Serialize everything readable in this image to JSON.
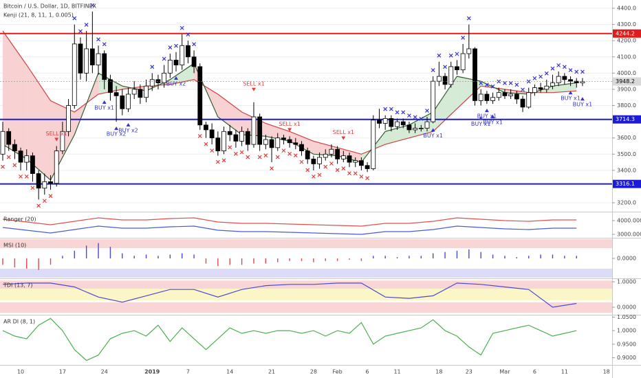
{
  "chart_data": [
    {
      "type": "candlestick",
      "title": "Bitcoin / U.S. Dollar, 1D, BITFINEX",
      "subtitle": "Kenji (21, 8, 11, 1, 0.005)",
      "categories": [
        null,
        null,
        null,
        "10",
        null,
        null,
        null,
        null,
        null,
        null,
        "17",
        null,
        null,
        null,
        null,
        null,
        null,
        "24",
        null,
        null,
        null,
        null,
        null,
        null,
        null,
        "2019",
        null,
        null,
        null,
        null,
        null,
        "7",
        null,
        null,
        null,
        null,
        null,
        null,
        "14",
        null,
        null,
        null,
        null,
        null,
        null,
        "21",
        null,
        null,
        null,
        null,
        null,
        null,
        "28",
        null,
        null,
        null,
        "Feb",
        null,
        null,
        null,
        null,
        "6",
        null,
        null,
        null,
        null,
        "11",
        null,
        null,
        null,
        null,
        null,
        null,
        "18",
        null,
        null,
        null,
        null,
        "23",
        null,
        null,
        null,
        null,
        null,
        "Mar",
        null,
        null,
        null,
        null,
        "6",
        null,
        null,
        null,
        null,
        "11",
        null,
        null,
        null,
        null,
        null,
        null,
        "18"
      ],
      "open": [
        3500,
        3640,
        3560,
        3520,
        3450,
        3490,
        3380,
        3290,
        3330,
        3320,
        3520,
        3640,
        3800,
        4180,
        4000,
        4150,
        4050,
        4120,
        3960,
        3880,
        3860,
        3780,
        3870,
        3900,
        3850,
        3920,
        3960,
        3940,
        4000,
        4080,
        4050,
        4170,
        4100,
        4040,
        3680,
        3650,
        3600,
        3520,
        3640,
        3620,
        3580,
        3640,
        3560,
        3730,
        3560,
        3590,
        3540,
        3600,
        3590,
        3570,
        3560,
        3520,
        3470,
        3440,
        3480,
        3500,
        3530,
        3470,
        3490,
        3450,
        3460,
        3430,
        3410,
        3710,
        3690,
        3720,
        3670,
        3700,
        3680,
        3650,
        3660,
        3660,
        3700,
        3950,
        3980,
        3930,
        4040,
        4020,
        4120,
        4150,
        3830,
        3870,
        3830,
        3850,
        3880,
        3860,
        3870,
        3840,
        3790,
        3880,
        3910,
        3900,
        3920,
        3940,
        3980,
        3960,
        3950,
        3940,
        null,
        null,
        null,
        null
      ],
      "high": [
        3700,
        3660,
        3590,
        3540,
        3530,
        3510,
        3400,
        3380,
        3370,
        3550,
        3700,
        3840,
        4300,
        4220,
        4260,
        4380,
        4170,
        4140,
        3990,
        3920,
        3900,
        3910,
        3950,
        3930,
        3960,
        4000,
        3990,
        4050,
        4120,
        4130,
        4240,
        4200,
        4140,
        4060,
        3700,
        3690,
        3640,
        3670,
        3680,
        3650,
        3670,
        3660,
        3820,
        3750,
        3620,
        3610,
        3630,
        3620,
        3610,
        3600,
        3580,
        3540,
        3490,
        3510,
        3530,
        3560,
        3550,
        3520,
        3510,
        3480,
        3480,
        3450,
        3740,
        3780,
        3740,
        3740,
        3720,
        3720,
        3700,
        3690,
        3680,
        3730,
        3980,
        4070,
        4000,
        4070,
        4080,
        4180,
        4300,
        4160,
        3900,
        3890,
        3880,
        3910,
        3900,
        3900,
        3890,
        3860,
        3910,
        3930,
        3940,
        3960,
        3990,
        4010,
        4000,
        3980,
        3970,
        3970,
        null,
        null,
        null,
        null
      ],
      "low": [
        3460,
        3520,
        3470,
        3400,
        3400,
        3330,
        3220,
        3250,
        3280,
        3300,
        3500,
        3610,
        3780,
        3960,
        3950,
        4000,
        3990,
        3900,
        3830,
        3700,
        3740,
        3760,
        3840,
        3810,
        3820,
        3890,
        3900,
        3910,
        3970,
        4010,
        4020,
        4060,
        4000,
        3650,
        3600,
        3560,
        3490,
        3500,
        3580,
        3540,
        3550,
        3520,
        3540,
        3520,
        3530,
        3450,
        3520,
        3560,
        3540,
        3530,
        3490,
        3440,
        3400,
        3410,
        3460,
        3480,
        3440,
        3450,
        3420,
        3420,
        3400,
        3390,
        3400,
        3660,
        3650,
        3640,
        3650,
        3660,
        3630,
        3630,
        3640,
        3640,
        3690,
        3920,
        3900,
        3910,
        3990,
        4000,
        4090,
        3800,
        3800,
        3810,
        3810,
        3830,
        3840,
        3840,
        3810,
        3760,
        3780,
        3860,
        3880,
        3880,
        3900,
        3920,
        3930,
        3920,
        3910,
        3920,
        null,
        null,
        null,
        null
      ],
      "close": [
        3640,
        3560,
        3520,
        3450,
        3490,
        3380,
        3290,
        3330,
        3320,
        3520,
        3640,
        3800,
        4180,
        4000,
        4150,
        4050,
        4120,
        3960,
        3880,
        3860,
        3780,
        3870,
        3900,
        3850,
        3920,
        3960,
        3940,
        4000,
        4080,
        4050,
        4170,
        4100,
        4040,
        3680,
        3650,
        3600,
        3520,
        3640,
        3620,
        3580,
        3640,
        3560,
        3730,
        3560,
        3590,
        3540,
        3600,
        3590,
        3570,
        3560,
        3520,
        3470,
        3440,
        3480,
        3500,
        3530,
        3470,
        3490,
        3450,
        3460,
        3430,
        3410,
        3710,
        3690,
        3720,
        3670,
        3700,
        3680,
        3650,
        3660,
        3660,
        3700,
        3950,
        3980,
        3930,
        4040,
        4020,
        4120,
        4150,
        3830,
        3870,
        3830,
        3850,
        3880,
        3860,
        3870,
        3840,
        3790,
        3880,
        3910,
        3900,
        3920,
        3940,
        3980,
        3960,
        3950,
        3940,
        3948.2,
        null,
        null,
        null,
        null
      ],
      "up_color": "#ffffff",
      "down_color": "#000000",
      "ylim": [
        3145,
        4451
      ],
      "yticks": [
        {
          "value": 3200,
          "label": "3200.0"
        },
        {
          "value": 3400,
          "label": "3400.0"
        },
        {
          "value": 3500,
          "label": "3500.0"
        },
        {
          "value": 3600,
          "label": "3600.0"
        },
        {
          "value": 3800,
          "label": "3800.0"
        },
        {
          "value": 3900,
          "label": "3900.0"
        },
        {
          "value": 4000,
          "label": "4000.0"
        },
        {
          "value": 4100,
          "label": "4100.0"
        },
        {
          "value": 4200,
          "label": "4200.0"
        },
        {
          "value": 4300,
          "label": "4300.0"
        },
        {
          "value": 4400,
          "label": "4400.0"
        }
      ],
      "grid": true,
      "levels": [
        {
          "value": 4244.2,
          "color": "#e01b1b"
        },
        {
          "value": 3714.3,
          "color": "#1c1cd6"
        },
        {
          "value": 3316.1,
          "color": "#1c1cd6"
        }
      ],
      "last_price": 3948.2,
      "last_price_color": "#d9d9d9",
      "ma": {
        "x": [
          0,
          4,
          8,
          12,
          16,
          20,
          24,
          28,
          32,
          36,
          40,
          44,
          48,
          52,
          56,
          60,
          64,
          68,
          72,
          76,
          80,
          84,
          88,
          92,
          96
        ],
        "slow": [
          4260,
          4050,
          3830,
          3760,
          3870,
          3900,
          3920,
          3930,
          3960,
          3870,
          3760,
          3690,
          3640,
          3580,
          3540,
          3500,
          3560,
          3600,
          3640,
          3780,
          3920,
          3900,
          3880,
          3880,
          3890
        ],
        "fast": [
          3560,
          3470,
          3340,
          3620,
          4000,
          3920,
          3890,
          3960,
          4060,
          3730,
          3620,
          3610,
          3580,
          3500,
          3490,
          3450,
          3640,
          3680,
          3760,
          3980,
          3950,
          3880,
          3870,
          3920,
          3940
        ],
        "slow_color": "#d04040",
        "fast_color": "#2e5e2e",
        "down_fill": "#f7caca",
        "up_fill": "#cfe8cf"
      },
      "x_above": [
        12,
        13,
        14,
        15,
        16,
        17,
        25,
        27,
        28,
        29,
        30,
        31,
        32,
        64,
        65,
        66,
        67,
        68,
        69,
        70,
        71,
        72,
        73,
        74,
        75,
        76,
        77,
        78,
        80,
        81,
        82,
        83,
        84,
        85,
        86,
        87,
        88,
        89,
        90,
        91,
        92,
        93,
        94,
        95,
        96,
        97
      ],
      "x_below": [
        0,
        1,
        2,
        3,
        4,
        5,
        6,
        7,
        8,
        33,
        34,
        35,
        36,
        37,
        38,
        39,
        40,
        41,
        43,
        44,
        45,
        46,
        47,
        48,
        49,
        50,
        51,
        52,
        53,
        54,
        55,
        56,
        57,
        58,
        59,
        60,
        61
      ],
      "x_above_color": "#3434d0",
      "x_below_color": "#e03c3c",
      "signals": [
        {
          "index": 9,
          "label": "SELL x1"
        },
        {
          "index": 17,
          "label": "BUY x1"
        },
        {
          "index": 19,
          "label": "BUY x2"
        },
        {
          "index": 21,
          "label": "BUY x2"
        },
        {
          "index": 29,
          "label": "BUY x2"
        },
        {
          "index": 42,
          "label": "SELL x1"
        },
        {
          "index": 48,
          "label": "SELL x1"
        },
        {
          "index": 57,
          "label": "SELL x1"
        },
        {
          "index": 72,
          "label": "BUY x1"
        },
        {
          "index": 80,
          "label": "BUY x1"
        },
        {
          "index": 81,
          "label": "BUY x1"
        },
        {
          "index": 82,
          "label": "BUY x1"
        },
        {
          "index": 95,
          "label": "BUY x1"
        },
        {
          "index": 97,
          "label": "BUY x1"
        }
      ],
      "sell_color": "#e03c3c",
      "buy_color": "#3434d0"
    },
    {
      "type": "line",
      "title": "Ranger (20)",
      "ylim": [
        2800,
        4550
      ],
      "yticks": [
        {
          "value": 3000,
          "label": "3000.0000"
        },
        {
          "value": 4000,
          "label": "4000.0000"
        }
      ],
      "x": [
        0,
        4,
        8,
        12,
        16,
        20,
        24,
        28,
        32,
        36,
        40,
        44,
        48,
        52,
        56,
        60,
        64,
        68,
        72,
        76,
        80,
        84,
        88,
        92,
        96
      ],
      "series": [
        {
          "color": "#e05050",
          "values": [
            4100,
            3900,
            3700,
            3950,
            4200,
            4050,
            4050,
            4150,
            4200,
            3900,
            3800,
            3800,
            3750,
            3700,
            3650,
            3600,
            3800,
            3800,
            3950,
            4200,
            4100,
            4000,
            3950,
            4050,
            4050
          ]
        },
        {
          "color": "#4a5ad8",
          "values": [
            3500,
            3300,
            3100,
            3350,
            3600,
            3450,
            3450,
            3550,
            3600,
            3300,
            3200,
            3200,
            3150,
            3100,
            3050,
            3000,
            3200,
            3200,
            3350,
            3600,
            3500,
            3400,
            3350,
            3450,
            3450
          ]
        }
      ]
    },
    {
      "type": "bar",
      "title": "MSI (10)",
      "ylim": [
        -1.5,
        1.5
      ],
      "yticks": [
        {
          "value": 0,
          "label": "0.0000"
        }
      ],
      "bands": [
        {
          "from": 0.8,
          "to": 1.5,
          "color": "#f8d6d6"
        },
        {
          "from": -1.5,
          "to": -0.8,
          "color": "#dcdcf8"
        }
      ],
      "x": [
        0,
        2,
        4,
        6,
        8,
        10,
        12,
        14,
        16,
        18,
        20,
        22,
        24,
        26,
        28,
        30,
        32,
        34,
        36,
        38,
        40,
        42,
        44,
        46,
        48,
        50,
        52,
        54,
        56,
        58,
        60,
        62,
        64,
        66,
        68,
        70,
        72,
        74,
        76,
        78,
        80,
        82,
        84,
        86,
        88,
        90,
        92,
        94,
        96
      ],
      "values": [
        -0.5,
        -0.7,
        -0.8,
        -0.9,
        -0.5,
        0.2,
        0.6,
        1.0,
        1.2,
        0.9,
        0.4,
        0.2,
        0.3,
        0.2,
        0.3,
        0.4,
        0.3,
        -0.4,
        -0.6,
        -0.5,
        -0.5,
        -0.4,
        -0.4,
        -0.3,
        -0.2,
        -0.2,
        -0.3,
        -0.2,
        -0.2,
        -0.1,
        -0.2,
        0.2,
        0.2,
        0.1,
        0.2,
        0.2,
        0.4,
        0.5,
        0.6,
        0.7,
        0.5,
        0.3,
        0.2,
        0.1,
        0.2,
        0.3,
        0.3,
        0.2,
        0.2
      ],
      "positive_color": "#4848e0",
      "negative_color": "#e04848"
    },
    {
      "type": "line",
      "title": "TDI (13, 7)",
      "ylim": [
        -0.27,
        1.11
      ],
      "yticks": [
        {
          "value": 0,
          "label": "0.0000"
        },
        {
          "value": 1,
          "label": "1.0000"
        }
      ],
      "bands": [
        {
          "from": 0.73,
          "to": 1.05,
          "color": "#f8d6d6"
        },
        {
          "from": 0.27,
          "to": 0.73,
          "color": "#fbf6c8"
        },
        {
          "from": -0.22,
          "to": 0.19,
          "color": "#f8d6d6"
        }
      ],
      "x": [
        0,
        4,
        8,
        12,
        16,
        20,
        24,
        28,
        32,
        36,
        40,
        44,
        48,
        52,
        56,
        60,
        64,
        68,
        72,
        76,
        80,
        84,
        88,
        92,
        96
      ],
      "series": [
        {
          "color": "#4a4ad0",
          "values": [
            0.9,
            0.95,
            0.95,
            0.8,
            0.4,
            0.2,
            0.45,
            0.7,
            0.7,
            0.4,
            0.7,
            0.85,
            0.9,
            0.9,
            0.95,
            0.95,
            0.4,
            0.35,
            0.45,
            0.95,
            0.9,
            0.8,
            0.7,
            0.0,
            0.15
          ]
        }
      ]
    },
    {
      "type": "line",
      "title": "AR DI (8, 1)",
      "ylim": [
        0.876,
        1.056
      ],
      "yticks": [
        {
          "value": 0.9,
          "label": "0.9000"
        },
        {
          "value": 0.95,
          "label": "0.9500"
        },
        {
          "value": 1,
          "label": "1.0000"
        },
        {
          "value": 1.05,
          "label": "1.0500"
        }
      ],
      "x": [
        0,
        2,
        4,
        6,
        8,
        10,
        12,
        14,
        16,
        18,
        20,
        22,
        24,
        26,
        28,
        30,
        32,
        34,
        36,
        38,
        40,
        42,
        44,
        46,
        48,
        50,
        52,
        54,
        56,
        58,
        60,
        62,
        64,
        66,
        68,
        70,
        72,
        74,
        76,
        78,
        80,
        82,
        84,
        86,
        88,
        90,
        92,
        94,
        96
      ],
      "series": [
        {
          "color": "#4caf50",
          "values": [
            1.0,
            0.98,
            0.97,
            1.02,
            1.045,
            1.0,
            0.93,
            0.89,
            0.91,
            0.97,
            0.99,
            1.0,
            0.98,
            1.02,
            0.96,
            1.01,
            0.97,
            0.93,
            0.97,
            1.01,
            0.99,
            1.0,
            0.99,
            1.0,
            1.0,
            0.99,
            1.0,
            0.98,
            1.0,
            0.99,
            1.03,
            0.95,
            0.98,
            0.99,
            1.0,
            1.01,
            1.04,
            1.0,
            0.98,
            0.94,
            0.91,
            0.99,
            1.0,
            1.01,
            1.02,
            1.0,
            0.98,
            0.99,
            1.0
          ]
        }
      ]
    }
  ]
}
